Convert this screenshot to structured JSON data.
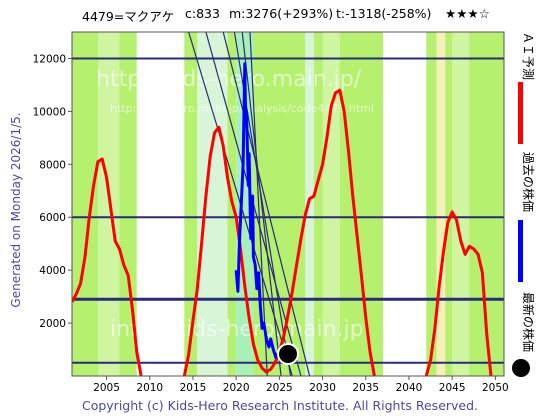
{
  "header": {
    "code_name": "4479=マクアケ",
    "current": "c:833",
    "max": "m:3276(+293%)",
    "trend": "t:-1318(-258%)",
    "stars": "★★★☆"
  },
  "side_label": "Generated on Monday 2026/1/5.",
  "footer": "Copyright (c) Kids-Hero Research Institute. All Rights Reserved.",
  "watermarks": [
    "http://kids-hero.main.jp/",
    "http://kids-hero.main.jp/analysis/code4479.html",
    "info@kids-hero.main.jp"
  ],
  "legend": {
    "ai_label": "ＡＩ予測",
    "past_label": "過去の株価",
    "latest_label": "最新の株価",
    "ai_color": "#ff0000",
    "past_color": "#0000ff",
    "latest_color": "#000000"
  },
  "chart_data": {
    "type": "line",
    "xlim": [
      2001,
      2051
    ],
    "ylim": [
      0,
      13000
    ],
    "x_ticks": [
      2005,
      2010,
      2015,
      2020,
      2025,
      2030,
      2035,
      2040,
      2045,
      2050
    ],
    "y_ticks": [
      2000,
      4000,
      6000,
      8000,
      10000,
      12000
    ],
    "hlines": [
      12000,
      6000,
      2900,
      500
    ],
    "ai_forecast": {
      "color": "#ff0000",
      "x": [
        2001,
        2001.5,
        2002,
        2002.5,
        2003,
        2003.5,
        2004,
        2004.5,
        2005,
        2005.5,
        2006,
        2006.5,
        2007,
        2007.5,
        2008,
        2008.5,
        2009,
        2009.5,
        2010,
        2011,
        2012,
        2013,
        2014,
        2014.5,
        2015,
        2015.5,
        2016,
        2016.5,
        2017,
        2017.5,
        2018,
        2018.5,
        2019,
        2019.5,
        2020,
        2020.5,
        2021,
        2021.5,
        2022,
        2022.5,
        2023,
        2023.5,
        2024,
        2024.5,
        2025,
        2025.5,
        2026,
        2026.5,
        2027,
        2027.5,
        2028,
        2028.5,
        2029,
        2029.5,
        2030,
        2030.5,
        2031,
        2031.5,
        2032,
        2032.5,
        2033,
        2033.5,
        2034,
        2034.5,
        2035,
        2035.5,
        2036,
        2036.5,
        2037,
        2038,
        2039,
        2040,
        2041,
        2042,
        2042.5,
        2043,
        2043.5,
        2044,
        2044.5,
        2045,
        2045.5,
        2046,
        2046.5,
        2047,
        2047.5,
        2048,
        2048.5,
        2049,
        2049.5,
        2050,
        2050.5
      ],
      "y": [
        2800,
        3100,
        3500,
        4500,
        6000,
        7200,
        8100,
        8200,
        7500,
        6300,
        5100,
        4800,
        4200,
        3800,
        2500,
        900,
        0,
        null,
        null,
        null,
        null,
        null,
        0,
        800,
        2100,
        3300,
        5000,
        6800,
        8300,
        9200,
        9400,
        8700,
        7500,
        6600,
        6000,
        4800,
        3400,
        2200,
        1200,
        600,
        300,
        150,
        250,
        500,
        900,
        1500,
        2300,
        3200,
        4200,
        5200,
        6100,
        6700,
        6800,
        7400,
        8000,
        9000,
        10200,
        10700,
        10800,
        10000,
        8500,
        6800,
        5300,
        3800,
        2200,
        900,
        0,
        null,
        null,
        null,
        null,
        null,
        null,
        0,
        600,
        1800,
        3400,
        4700,
        5800,
        6200,
        5900,
        5100,
        4600,
        4900,
        4800,
        4600,
        3900,
        1600,
        0,
        null,
        null
      ]
    },
    "past_price": {
      "color": "#0000ff",
      "x": [
        2020,
        2020.2,
        2020.4,
        2020.6,
        2020.8,
        2021,
        2021.1,
        2021.2,
        2021.4,
        2021.5,
        2021.7,
        2021.9,
        2022,
        2022.2,
        2022.4,
        2022.6,
        2022.8,
        2023,
        2023.2,
        2023.5,
        2023.8,
        2024,
        2024.3,
        2024.6,
        2025,
        2025.3,
        2025.6,
        2026
      ],
      "y": [
        4000,
        3200,
        5200,
        6500,
        8000,
        11800,
        9500,
        10000,
        7200,
        8400,
        5200,
        6800,
        4500,
        4200,
        3300,
        3900,
        2600,
        1800,
        2000,
        1400,
        1100,
        1400,
        1000,
        700,
        950,
        700,
        850,
        833
      ]
    },
    "latest": {
      "x": 2026,
      "y": 833
    },
    "trend_lines": [
      {
        "from": [
          2014.5,
          13000
        ],
        "to": [
          2026.5,
          0
        ]
      },
      {
        "from": [
          2016.5,
          13000
        ],
        "to": [
          2027.5,
          0
        ]
      },
      {
        "from": [
          2018.5,
          13000
        ],
        "to": [
          2028.5,
          0
        ]
      },
      {
        "from": [
          2019.8,
          13000
        ],
        "to": [
          2026.3,
          0
        ]
      },
      {
        "from": [
          2020.7,
          13000
        ],
        "to": [
          2025.2,
          0
        ]
      },
      {
        "from": [
          2021.6,
          13000
        ],
        "to": [
          2023.6,
          0
        ]
      }
    ]
  }
}
